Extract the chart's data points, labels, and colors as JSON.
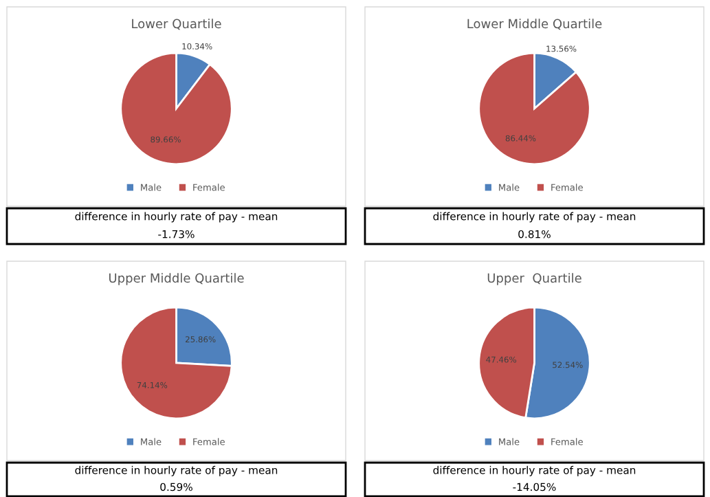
{
  "chart_data": [
    {
      "type": "pie",
      "title": "Lower Quartile",
      "categories": [
        "Male",
        "Female"
      ],
      "values": [
        10.34,
        89.66
      ],
      "colors": [
        "#4f81bd",
        "#c0504d"
      ],
      "value_labels": [
        "10.34%",
        "89.66%"
      ],
      "legend": "bottom",
      "annotations": [
        "difference in hourly rate of pay - mean",
        "-1.73%"
      ]
    },
    {
      "type": "pie",
      "title": "Lower Middle Quartile",
      "categories": [
        "Male",
        "Female"
      ],
      "values": [
        13.56,
        86.44
      ],
      "colors": [
        "#4f81bd",
        "#c0504d"
      ],
      "value_labels": [
        "13.56%",
        "86.44%"
      ],
      "legend": "bottom",
      "annotations": [
        "difference in hourly rate of pay - mean",
        "0.81%"
      ]
    },
    {
      "type": "pie",
      "title": "Upper Middle Quartile",
      "categories": [
        "Male",
        "Female"
      ],
      "values": [
        25.86,
        74.14
      ],
      "colors": [
        "#4f81bd",
        "#c0504d"
      ],
      "value_labels": [
        "25.86%",
        "74.14%"
      ],
      "legend": "bottom",
      "annotations": [
        "difference in hourly rate of pay - mean",
        "0.59%"
      ]
    },
    {
      "type": "pie",
      "title": "Upper  Quartile",
      "categories": [
        "Male",
        "Female"
      ],
      "values": [
        52.54,
        47.46
      ],
      "colors": [
        "#4f81bd",
        "#c0504d"
      ],
      "value_labels": [
        "52.54%",
        "47.46%"
      ],
      "legend": "bottom",
      "annotations": [
        "difference in hourly rate of pay - mean",
        "-14.05%"
      ]
    }
  ]
}
